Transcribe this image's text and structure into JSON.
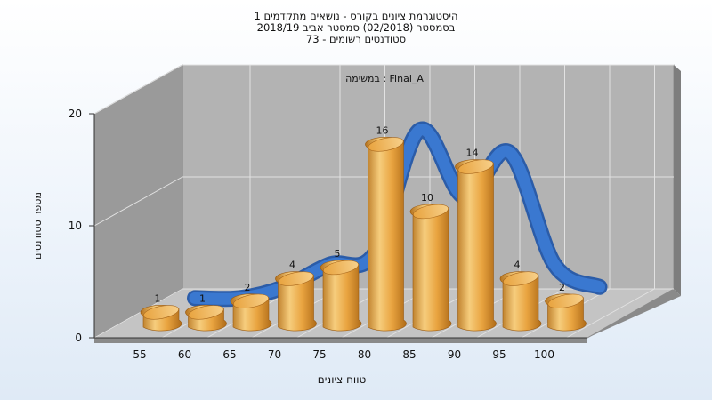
{
  "chart_data": {
    "type": "bar",
    "title_lines": [
      "היסטוגרמת ציונים בקורס - נושאים מתקדמים 1",
      "בסמסטר  (02/2018)  סמסטר אביב 2018/19",
      "סטודנטים רשומים - 73"
    ],
    "series_label": "במשימה : Final_A",
    "xlabel": "טווח ציונים",
    "ylabel": "מספר סטודנטים",
    "categories": [
      "55",
      "60",
      "65",
      "70",
      "75",
      "80",
      "85",
      "90",
      "95",
      "100"
    ],
    "values": [
      1,
      1,
      2,
      4,
      5,
      16,
      10,
      14,
      4,
      2
    ],
    "ylim": [
      0,
      20
    ],
    "yticks": [
      "0",
      "10",
      "20"
    ],
    "curve": [
      1,
      1,
      2,
      4,
      5,
      16,
      10,
      14,
      4,
      2
    ],
    "grid": true,
    "colors": {
      "bar": "#e3a23c",
      "curve": "#3a78d0",
      "wall": "#9a9a9a",
      "back": "#b3b3b3"
    }
  }
}
